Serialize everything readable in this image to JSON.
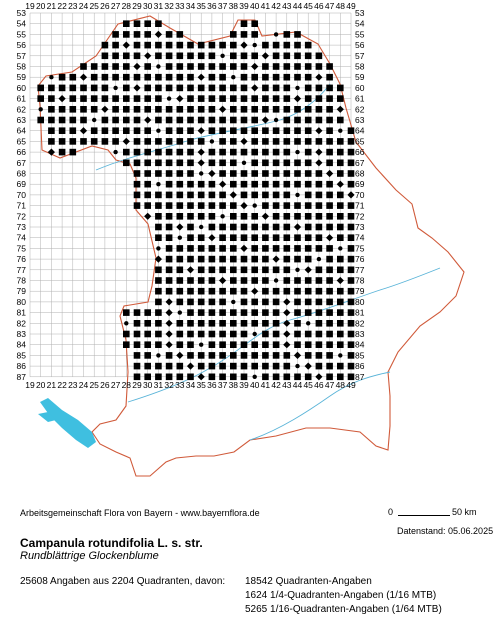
{
  "map": {
    "x_labels": [
      "19",
      "20",
      "21",
      "22",
      "23",
      "24",
      "25",
      "26",
      "27",
      "28",
      "29",
      "30",
      "31",
      "32",
      "33",
      "34",
      "35",
      "36",
      "37",
      "38",
      "39",
      "40",
      "41",
      "42",
      "43",
      "44",
      "45",
      "46",
      "47",
      "48",
      "49"
    ],
    "y_labels": [
      "53",
      "54",
      "55",
      "56",
      "57",
      "58",
      "59",
      "60",
      "61",
      "62",
      "63",
      "64",
      "65",
      "66",
      "67",
      "68",
      "69",
      "70",
      "71",
      "72",
      "73",
      "74",
      "75",
      "76",
      "77",
      "78",
      "79",
      "80",
      "81",
      "82",
      "83",
      "84",
      "85",
      "86",
      "87"
    ],
    "grid_color": "#b0b0b0",
    "border_color": "#d05a3a",
    "water_color": "#3fbfe0",
    "river_color": "#5ab4d8",
    "marker_color": "#000000",
    "marker_types": [
      "filled-square = quadrant record",
      "diamond = 1/4 quadrant record",
      "dot = 1/16 quadrant record"
    ]
  },
  "footer": {
    "credit": "Arbeitsgemeinschaft Flora von Bayern - www.bayernflora.de",
    "scale_zero": "0",
    "scale_label": "50 km",
    "date": "Datenstand: 05.06.2025",
    "species_name": "Campanula rotundifolia L. s. str.",
    "common_name": "Rundblättrige Glockenblume",
    "summary": "25608 Angaben aus 2204 Quadranten, davon:",
    "stats": [
      "18542 Quadranten-Angaben",
      "1624 1/4-Quadranten-Angaben (1/16 MTB)",
      "5265 1/16-Quadranten-Angaben (1/64 MTB)"
    ]
  }
}
